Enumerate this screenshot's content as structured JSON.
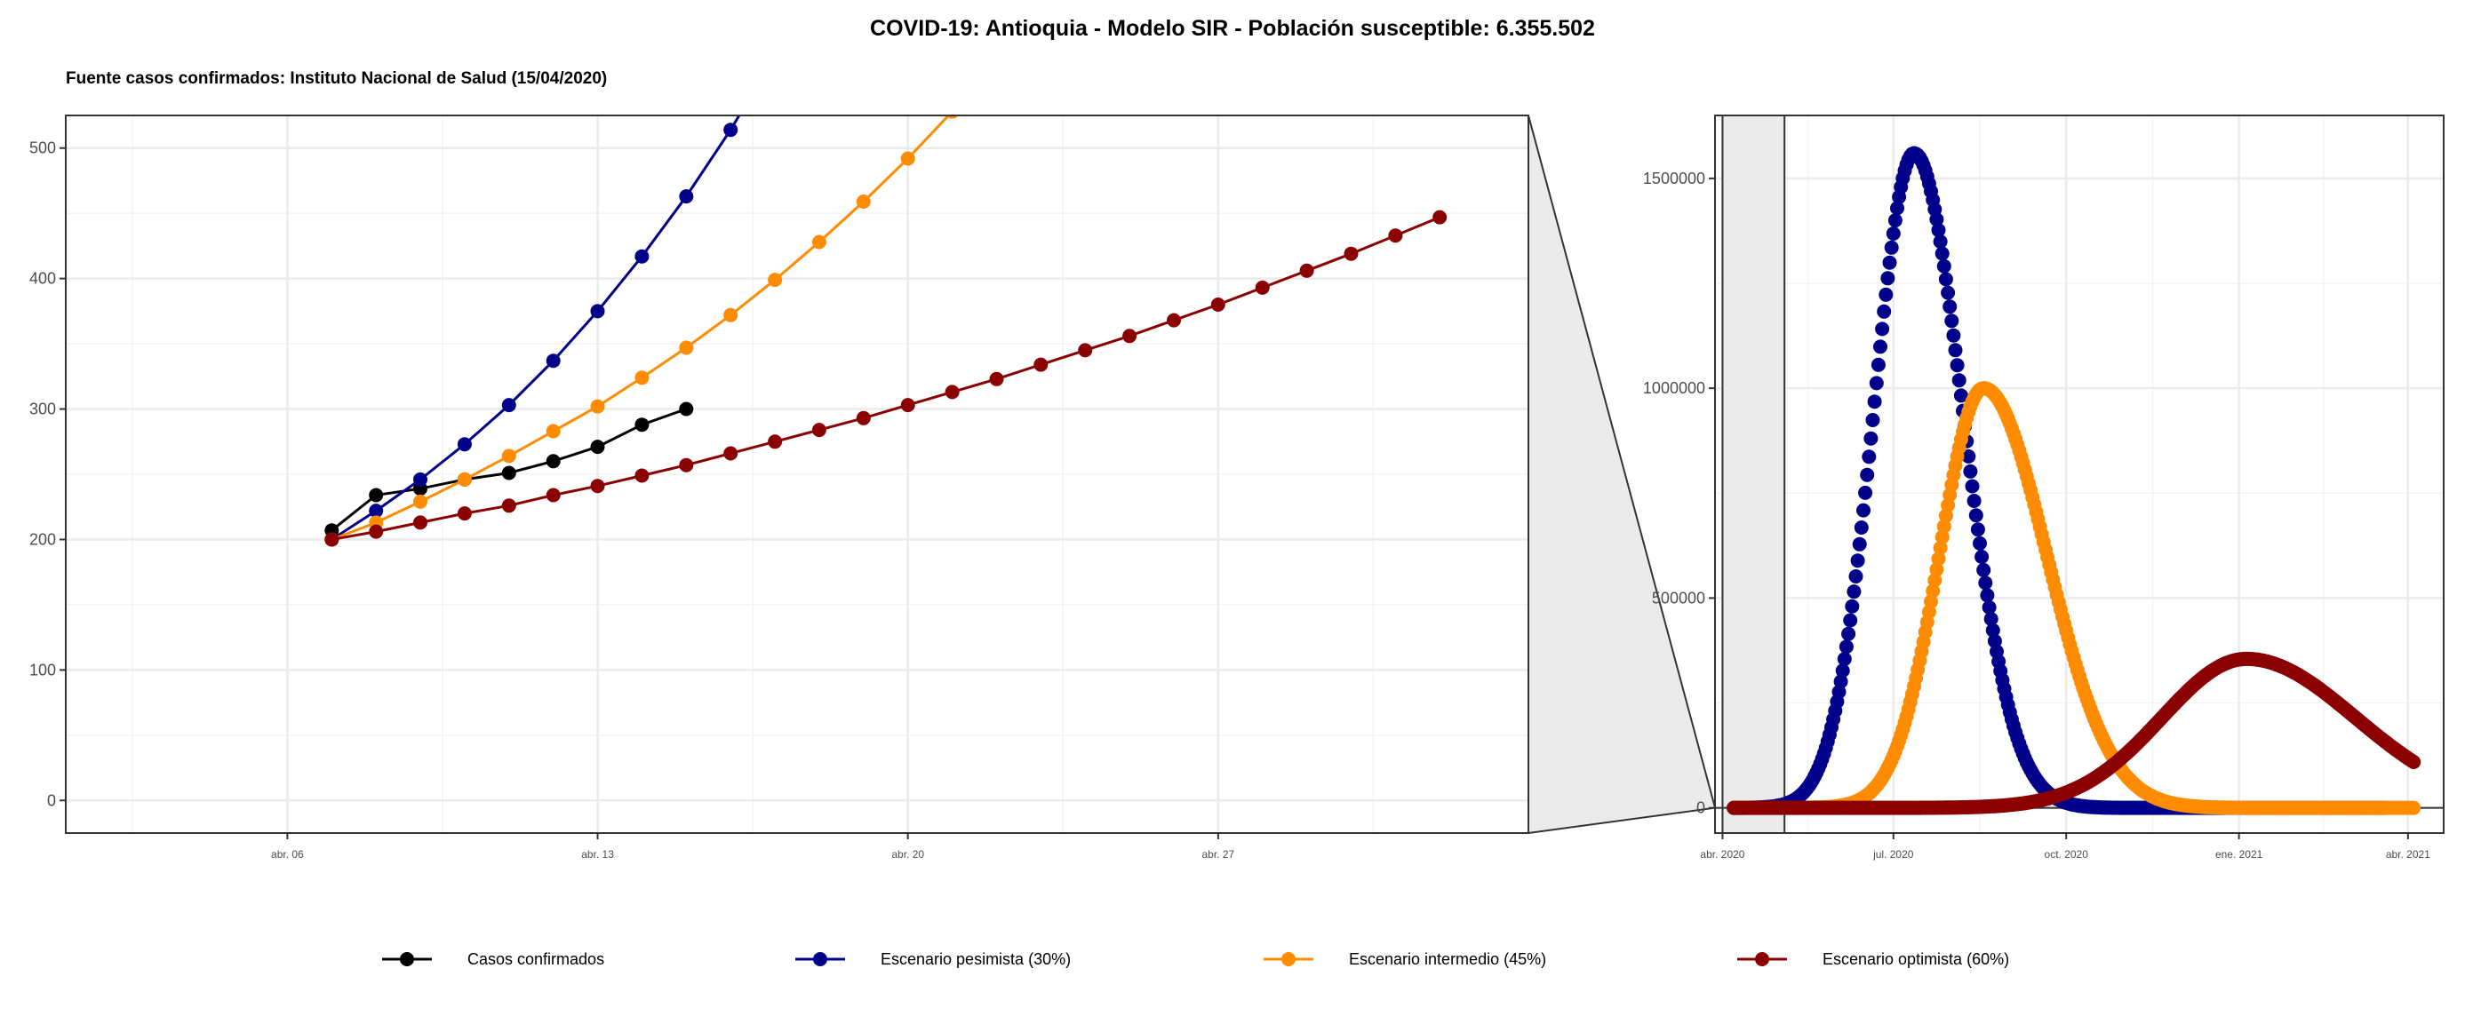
{
  "title": "COVID-19: Antioquia - Modelo SIR - Población susceptible: 6.355.502",
  "subtitle": "Fuente casos confirmados: Instituto Nacional de Salud (15/04/2020)",
  "chart_data": [
    {
      "type": "line",
      "panel": "zoom",
      "x_axis": "date",
      "xlim": [
        "2020-04-01",
        "2020-05-04"
      ],
      "ylim": [
        -25,
        525
      ],
      "y_ticks": [
        0,
        100,
        200,
        300,
        400,
        500
      ],
      "x_ticks": [
        {
          "date": "2020-04-06",
          "label": "abr. 06"
        },
        {
          "date": "2020-04-13",
          "label": "abr. 13"
        },
        {
          "date": "2020-04-20",
          "label": "abr. 20"
        },
        {
          "date": "2020-04-27",
          "label": "abr. 27"
        }
      ],
      "grid": true,
      "series": [
        {
          "key": "confirmed",
          "name": "Casos confirmados",
          "start": "2020-04-07",
          "values": [
            207,
            234,
            239,
            246,
            251,
            260,
            271,
            288,
            300
          ]
        },
        {
          "key": "pessimistic",
          "name": "Escenario pesimista (30%)",
          "start": "2020-04-07",
          "values": [
            200,
            222,
            246,
            273,
            303,
            337,
            375,
            417,
            463,
            514,
            571
          ]
        },
        {
          "key": "intermediate",
          "name": "Escenario intermedio (45%)",
          "start": "2020-04-07",
          "values": [
            200,
            213,
            229,
            246,
            264,
            283,
            302,
            324,
            347,
            372,
            399,
            428,
            459,
            492,
            528
          ]
        },
        {
          "key": "optimistic",
          "name": "Escenario optimista (60%)",
          "start": "2020-04-07",
          "values": [
            200,
            206,
            213,
            220,
            226,
            234,
            241,
            249,
            257,
            266,
            275,
            284,
            293,
            303,
            313,
            323,
            334,
            345,
            356,
            368,
            380,
            393,
            406,
            419,
            433,
            447
          ]
        }
      ]
    },
    {
      "type": "line",
      "panel": "full",
      "x_axis": "date",
      "xlim": [
        "2020-03-28",
        "2021-04-20"
      ],
      "ylim": [
        -60000,
        1650000
      ],
      "y_ticks": [
        0,
        500000,
        1000000,
        1500000
      ],
      "y_tick_labels": [
        "0",
        "500000",
        "1000000",
        "1500000"
      ],
      "x_ticks": [
        {
          "date": "2020-04-01",
          "label": "abr. 2020"
        },
        {
          "date": "2020-07-01",
          "label": "jul. 2020"
        },
        {
          "date": "2020-10-01",
          "label": "oct. 2020"
        },
        {
          "date": "2021-01-01",
          "label": "ene. 2021"
        },
        {
          "date": "2021-04-01",
          "label": "abr. 2021"
        }
      ],
      "zoom_region": [
        "2020-04-01",
        "2020-05-04"
      ],
      "grid": true,
      "series": [
        {
          "key": "confirmed",
          "name": "Casos confirmados",
          "curve": "points",
          "dates": [
            "2020-04-07",
            "2020-04-09",
            "2020-04-11",
            "2020-04-13",
            "2020-04-15"
          ],
          "values": [
            207,
            239,
            251,
            271,
            300
          ]
        },
        {
          "key": "pessimistic",
          "name": "Escenario pesimista (30%)",
          "curve": "epidemic",
          "peak_date": "2020-07-12",
          "peak_value": 1560000,
          "baseline": 200,
          "tail_end": 0,
          "sigma_left_days": 21.5,
          "sigma_right_days": 26.0,
          "end": "2021-03-20"
        },
        {
          "key": "intermediate",
          "name": "Escenario intermedio (45%)",
          "curve": "epidemic",
          "peak_date": "2020-08-18",
          "peak_value": 1000000,
          "baseline": 200,
          "tail_end": 0,
          "sigma_left_days": 23.5,
          "sigma_right_days": 33.5,
          "end": "2021-04-04"
        },
        {
          "key": "optimistic",
          "name": "Escenario optimista (60%)",
          "curve": "epidemic",
          "peak_date": "2021-01-05",
          "peak_value": 355000,
          "baseline": 200,
          "tail_end": 0,
          "sigma_left_days": 45.0,
          "sigma_right_days": 58.0,
          "end": "2021-04-04"
        }
      ]
    }
  ],
  "legend": {
    "placement": "bottom",
    "items": [
      {
        "key": "confirmed",
        "label": "Casos confirmados"
      },
      {
        "key": "pessimistic",
        "label": "Escenario pesimista (30%)"
      },
      {
        "key": "intermediate",
        "label": "Escenario intermedio (45%)"
      },
      {
        "key": "optimistic",
        "label": "Escenario optimista (60%)"
      }
    ]
  },
  "colors": {
    "confirmed": "#000000",
    "pessimistic": "#00008b",
    "intermediate": "#ff8c00",
    "optimistic": "#8b0000",
    "grid_major": "#ebebeb",
    "grid_minor": "#f3f3f3",
    "zoom_fill": "#ebebeb"
  }
}
